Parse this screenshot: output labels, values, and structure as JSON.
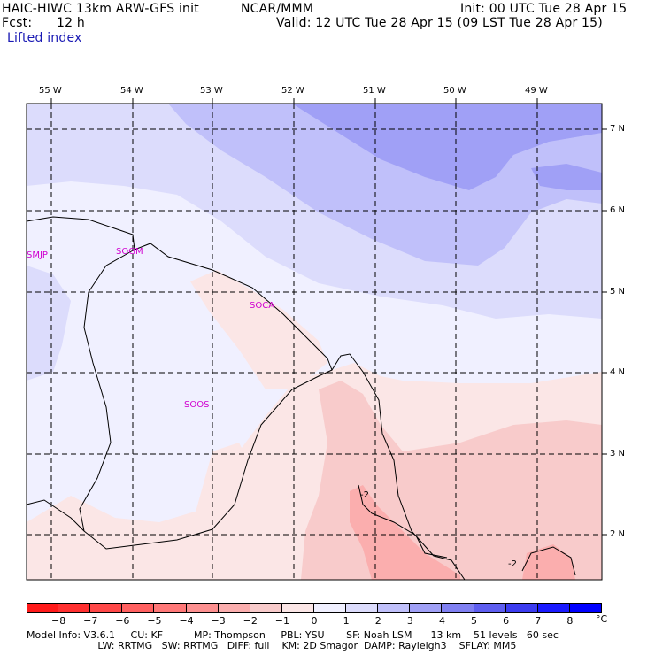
{
  "header": {
    "model_title": "HAIC-HIWC 13km ARW-GFS init",
    "org": "NCAR/MMM",
    "init": "Init: 00 UTC Tue 28 Apr 15",
    "fcst_label": "Fcst:",
    "fcst_value": "12 h",
    "valid": "Valid: 12 UTC Tue 28 Apr 15 (09 LST Tue 28 Apr 15)",
    "field_name": "Lifted index"
  },
  "map": {
    "lon_labels": [
      "55 W",
      "54 W",
      "53 W",
      "52 W",
      "51 W",
      "50 W",
      "49 W"
    ],
    "lat_labels": [
      "7 N",
      "6 N",
      "5 N",
      "4 N",
      "3 N",
      "2 N"
    ],
    "stations": [
      "SMJP",
      "SOGM",
      "SOCA",
      "SOOS"
    ],
    "contour_labels": [
      "-2",
      "-2"
    ]
  },
  "colorbar": {
    "ticks": [
      "−8",
      "−7",
      "−6",
      "−5",
      "−4",
      "−3",
      "−2",
      "−1",
      "0",
      "1",
      "2",
      "3",
      "4",
      "5",
      "6",
      "7",
      "8"
    ],
    "unit": "°C",
    "colors": [
      "#ff1a1a",
      "#ff3030",
      "#ff4848",
      "#ff6060",
      "#ff7878",
      "#fd9090",
      "#fbaeae",
      "#f8cbcb",
      "#fbe6e6",
      "#f0f0ff",
      "#dcdcfc",
      "#c0c0fa",
      "#a0a0f6",
      "#8080f2",
      "#5e5ef0",
      "#3c3cf0",
      "#1a1aff",
      "#0000ff"
    ]
  },
  "footer": {
    "line1": "Model Info: V3.6.1     CU: KF          MP: Thompson     PBL: YSU       SF: Noah LSM      13 km    51 levels   60 sec",
    "line2": "                       LW: RRTMG   SW: RRTMG   DIFF: full    KM: 2D Smagor  DAMP: Rayleigh3    SFLAY: MM5"
  }
}
